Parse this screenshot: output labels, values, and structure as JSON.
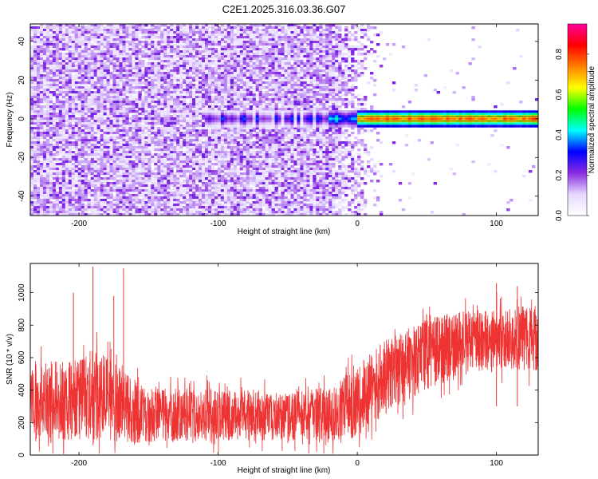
{
  "chart_data": [
    {
      "type": "heatmap",
      "title": "C2E1.2025.316.03.36.G07",
      "xlabel": "Height of straight line (km)",
      "ylabel": "Frequency (Hz)",
      "xlim": [
        -235,
        130
      ],
      "ylim": [
        -50,
        49
      ],
      "xticks": [
        -200,
        -100,
        0,
        100
      ],
      "yticks": [
        -40,
        -20,
        0,
        20,
        40
      ],
      "tick_labels_x": [
        "-200",
        "-100",
        "0",
        "100"
      ],
      "tick_labels_y": [
        "-40",
        "-20",
        "0",
        "20",
        "40"
      ],
      "colorbar": {
        "label": "Normalized spectral amplitude",
        "range": [
          0.0,
          0.95
        ],
        "ticks": [
          0.0,
          0.2,
          0.4,
          0.6,
          0.8
        ],
        "tick_labels": [
          "0.0",
          "0.2",
          "0.4",
          "0.6",
          "0.8"
        ],
        "colormap": [
          "#ffffff",
          "#e6d9ff",
          "#8a2be2",
          "#0000ff",
          "#00ffff",
          "#00ff00",
          "#ffff00",
          "#ff8000",
          "#ff0000",
          "#ff0099"
        ]
      },
      "features": {
        "noise_region_x": [
          -235,
          -20
        ],
        "fading_region_x": [
          -20,
          18
        ],
        "signal_line_x": [
          -110,
          130
        ],
        "signal_line_freq": 0,
        "signal_peak_amplitude": 0.85
      }
    },
    {
      "type": "line",
      "xlabel": "Height of straight line (km)",
      "ylabel": "SNR (10 * v/v)",
      "xlim": [
        -235,
        130
      ],
      "ylim": [
        0,
        1180
      ],
      "xticks": [
        -200,
        -100,
        0,
        100
      ],
      "yticks": [
        0,
        200,
        400,
        600,
        800,
        1000
      ],
      "tick_labels_x": [
        "-200",
        "-100",
        "0",
        "100"
      ],
      "tick_labels_y": [
        "0",
        "200",
        "400",
        "600",
        "800",
        "1000"
      ],
      "series": [
        {
          "name": "SNR",
          "color": "#ee3333",
          "envelope": {
            "x": [
              -235,
              -200,
              -190,
              -175,
              -150,
              -100,
              -50,
              -20,
              0,
              20,
              50,
              80,
              100,
              130
            ],
            "mean": [
              350,
              330,
              360,
              320,
              240,
              250,
              240,
              250,
              330,
              480,
              620,
              700,
              720,
              720
            ],
            "spread": [
              220,
              260,
              300,
              250,
              170,
              160,
              150,
              170,
              220,
              230,
              220,
              190,
              190,
              200
            ]
          },
          "peaks": [
            {
              "x": -204,
              "y": 1000
            },
            {
              "x": -190,
              "y": 1160
            },
            {
              "x": -168,
              "y": 1150
            },
            {
              "x": -175,
              "y": 980
            },
            {
              "x": 100,
              "y": 1060
            },
            {
              "x": 115,
              "y": 1040
            }
          ]
        }
      ]
    }
  ]
}
